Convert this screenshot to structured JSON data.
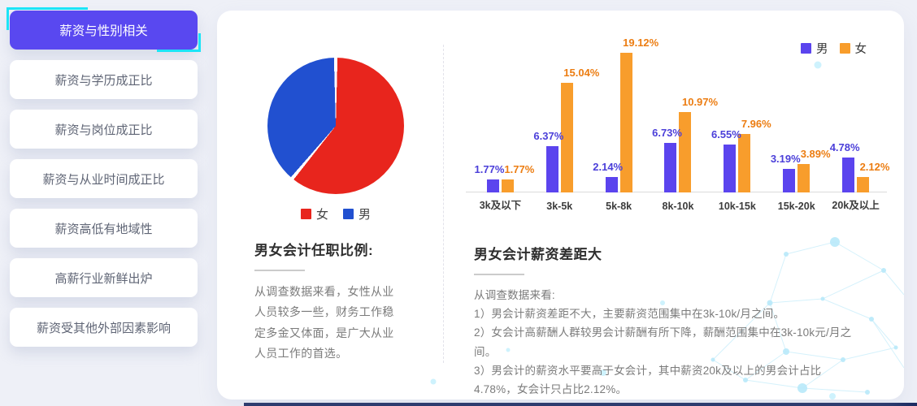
{
  "sidebar": {
    "items": [
      {
        "label": "薪资与性别相关",
        "active": true
      },
      {
        "label": "薪资与学历成正比",
        "active": false
      },
      {
        "label": "薪资与岗位成正比",
        "active": false
      },
      {
        "label": "薪资与从业时间成正比",
        "active": false
      },
      {
        "label": "薪资高低有地域性",
        "active": false
      },
      {
        "label": "高薪行业新鲜出炉",
        "active": false
      },
      {
        "label": "薪资受其他外部因素影响",
        "active": false
      }
    ]
  },
  "chart_data": [
    {
      "type": "pie",
      "labels": [
        "女",
        "男"
      ],
      "values": [
        61,
        39
      ],
      "colors": [
        "#e8251d",
        "#2150d0"
      ],
      "legend_position": "bottom",
      "note": "share of accounting jobs by gender, estimated from slice angles"
    },
    {
      "type": "bar",
      "categories": [
        "3k及以下",
        "3k-5k",
        "5k-8k",
        "8k-10k",
        "10k-15k",
        "15k-20k",
        "20k及以上"
      ],
      "series": [
        {
          "name": "男",
          "values": [
            1.77,
            6.37,
            2.14,
            6.73,
            6.55,
            3.19,
            4.78
          ],
          "color": "#5b44ee",
          "label_color": "#4b3fd9"
        },
        {
          "name": "女",
          "values": [
            1.77,
            15.04,
            19.12,
            10.97,
            7.96,
            3.89,
            2.12
          ],
          "color": "#f89d2c",
          "label_color": "#ec7d12"
        }
      ],
      "value_suffix": "%",
      "ylim": [
        0,
        20
      ],
      "grid": false,
      "legend_position": "top-right"
    }
  ],
  "pie_section": {
    "title": "男女会计任职比例:",
    "body": "从调查数据来看，女性从业人员较多一些，财务工作稳定多金又体面，是广大从业人员工作的首选。"
  },
  "bar_section": {
    "title": "男女会计薪资差距大",
    "intro": "从调查数据来看:",
    "points": [
      "1）男会计薪资差距不大，主要薪资范围集中在3k-10k/月之间。",
      "2）女会计高薪酬人群较男会计薪酬有所下降，薪酬范围集中在3k-10k元/月之间。",
      "3）男会计的薪资水平要高于女会计，其中薪资20k及以上的男会计占比4.78%，女会计只占比2.12%。"
    ]
  },
  "colors": {
    "page_background": "#eef0f7",
    "active_item_background": "#5948f0",
    "active_item_glitch": "#1ce4f7",
    "bottom_bar": "#1d2c62",
    "decoration_network": "#cdeffb"
  }
}
